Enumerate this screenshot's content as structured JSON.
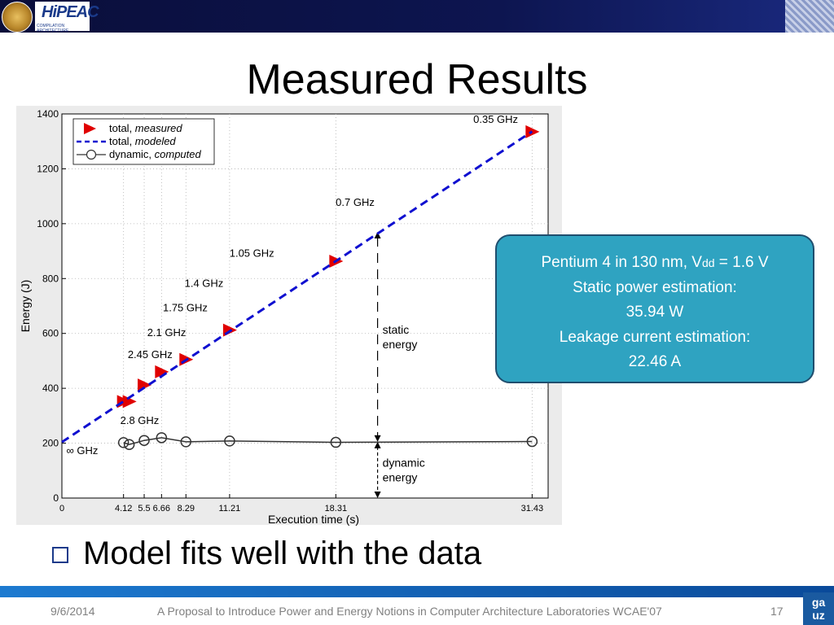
{
  "slide": {
    "title": "Measured Results",
    "bullet": "Model fits well with the data",
    "callout": {
      "line1_prefix": "Pentium 4 in 130 nm, V",
      "line1_sub": "dd",
      "line1_suffix": " = 1.6 V",
      "line2": "Static power estimation:",
      "line3": "35.94 W",
      "line4": "Leakage current estimation:",
      "line5": "22.46 A"
    },
    "footer": {
      "date": "9/6/2014",
      "caption": "A Proposal to Introduce Power and Energy Notions in Computer Architecture Laboratories WCAE'07",
      "page": "17"
    },
    "logos": {
      "hipeac_main": "HiPEAC",
      "hipeac_sub": "COMPILATION ARCHITECTURE",
      "badge_top": "ga",
      "badge_bottom": "uz"
    }
  },
  "chart_data": {
    "type": "line",
    "xlabel": "Execution time (s)",
    "ylabel": "Energy (J)",
    "xlim": [
      0,
      32.5
    ],
    "ylim": [
      0,
      1400
    ],
    "yticks": [
      0,
      200,
      400,
      600,
      800,
      1000,
      1200,
      1400
    ],
    "xticks": [
      0,
      4.12,
      5.5,
      6.66,
      8.29,
      11.21,
      18.31,
      31.43
    ],
    "xtick_labels": [
      "0",
      "4.12",
      "5.5",
      "6.66",
      "8.29",
      "11.21",
      "18.31",
      "31.43"
    ],
    "grid": true,
    "legend_position": "top-left",
    "series": [
      {
        "name": "total, measured",
        "style": "triangle-marker",
        "color": "#e00000",
        "x": [
          4.12,
          4.5,
          5.5,
          6.66,
          8.29,
          11.21,
          18.31,
          31.43
        ],
        "y": [
          352,
          352,
          412,
          460,
          505,
          612,
          863,
          1335
        ]
      },
      {
        "name": "total, modeled",
        "style": "dashed-line",
        "color": "#1010d0",
        "x": [
          0,
          31.43
        ],
        "y": [
          204,
          1336
        ]
      },
      {
        "name": "dynamic, computed",
        "style": "circle-line",
        "color": "#333333",
        "x": [
          4.12,
          4.5,
          5.5,
          6.66,
          8.29,
          11.21,
          18.31,
          31.43
        ],
        "y": [
          202,
          195,
          210,
          220,
          205,
          208,
          203,
          206
        ]
      }
    ],
    "point_labels": [
      {
        "text": "0.35 GHz",
        "x": 27.5,
        "y": 1368
      },
      {
        "text": "0.7 GHz",
        "x": 18.3,
        "y": 1065
      },
      {
        "text": "1.05 GHz",
        "x": 11.2,
        "y": 880
      },
      {
        "text": "1.4 GHz",
        "x": 8.2,
        "y": 770
      },
      {
        "text": "1.75 GHz",
        "x": 6.75,
        "y": 680
      },
      {
        "text": "2.1 GHz",
        "x": 5.7,
        "y": 590
      },
      {
        "text": "2.45 GHz",
        "x": 4.4,
        "y": 510
      },
      {
        "text": "2.8 GHz",
        "x": 3.9,
        "y": 270
      },
      {
        "text": "∞ GHz",
        "x": 0.3,
        "y": 160
      }
    ],
    "annotations": [
      {
        "text1": "static",
        "text2": "energy",
        "x_line": 21.1,
        "y_from": 205,
        "y_to": 970
      },
      {
        "text1": "dynamic",
        "text2": "energy",
        "x_line": 21.1,
        "y_from": 0,
        "y_to": 205
      }
    ]
  }
}
